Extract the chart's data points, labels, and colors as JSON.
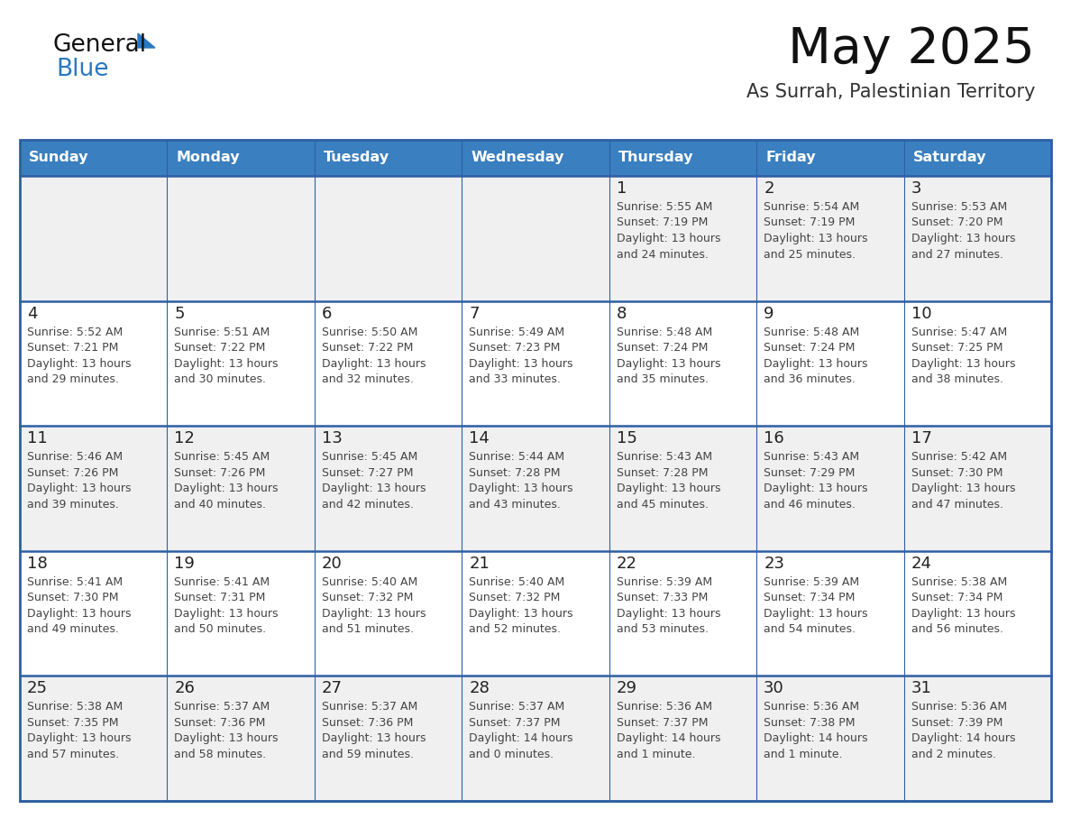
{
  "title": "May 2025",
  "subtitle": "As Surrah, Palestinian Territory",
  "days_of_week": [
    "Sunday",
    "Monday",
    "Tuesday",
    "Wednesday",
    "Thursday",
    "Friday",
    "Saturday"
  ],
  "header_bg": "#3a7fbf",
  "header_text": "#ffffff",
  "cell_bg": "#ffffff",
  "cell_bg_first": "#f0f0f0",
  "cell_border_color": "#2e5fa3",
  "row_divider_color": "#2e5fa3",
  "day_number_color": "#222222",
  "text_color": "#444444",
  "title_color": "#111111",
  "subtitle_color": "#333333",
  "logo_general_color": "#111111",
  "logo_blue_color": "#2878c0",
  "weeks": [
    {
      "days": [
        {
          "date": "",
          "sunrise": "",
          "sunset": "",
          "daylight": ""
        },
        {
          "date": "",
          "sunrise": "",
          "sunset": "",
          "daylight": ""
        },
        {
          "date": "",
          "sunrise": "",
          "sunset": "",
          "daylight": ""
        },
        {
          "date": "",
          "sunrise": "",
          "sunset": "",
          "daylight": ""
        },
        {
          "date": "1",
          "sunrise": "5:55 AM",
          "sunset": "7:19 PM",
          "daylight": "13 hours and 24 minutes."
        },
        {
          "date": "2",
          "sunrise": "5:54 AM",
          "sunset": "7:19 PM",
          "daylight": "13 hours and 25 minutes."
        },
        {
          "date": "3",
          "sunrise": "5:53 AM",
          "sunset": "7:20 PM",
          "daylight": "13 hours and 27 minutes."
        }
      ]
    },
    {
      "days": [
        {
          "date": "4",
          "sunrise": "5:52 AM",
          "sunset": "7:21 PM",
          "daylight": "13 hours and 29 minutes."
        },
        {
          "date": "5",
          "sunrise": "5:51 AM",
          "sunset": "7:22 PM",
          "daylight": "13 hours and 30 minutes."
        },
        {
          "date": "6",
          "sunrise": "5:50 AM",
          "sunset": "7:22 PM",
          "daylight": "13 hours and 32 minutes."
        },
        {
          "date": "7",
          "sunrise": "5:49 AM",
          "sunset": "7:23 PM",
          "daylight": "13 hours and 33 minutes."
        },
        {
          "date": "8",
          "sunrise": "5:48 AM",
          "sunset": "7:24 PM",
          "daylight": "13 hours and 35 minutes."
        },
        {
          "date": "9",
          "sunrise": "5:48 AM",
          "sunset": "7:24 PM",
          "daylight": "13 hours and 36 minutes."
        },
        {
          "date": "10",
          "sunrise": "5:47 AM",
          "sunset": "7:25 PM",
          "daylight": "13 hours and 38 minutes."
        }
      ]
    },
    {
      "days": [
        {
          "date": "11",
          "sunrise": "5:46 AM",
          "sunset": "7:26 PM",
          "daylight": "13 hours and 39 minutes."
        },
        {
          "date": "12",
          "sunrise": "5:45 AM",
          "sunset": "7:26 PM",
          "daylight": "13 hours and 40 minutes."
        },
        {
          "date": "13",
          "sunrise": "5:45 AM",
          "sunset": "7:27 PM",
          "daylight": "13 hours and 42 minutes."
        },
        {
          "date": "14",
          "sunrise": "5:44 AM",
          "sunset": "7:28 PM",
          "daylight": "13 hours and 43 minutes."
        },
        {
          "date": "15",
          "sunrise": "5:43 AM",
          "sunset": "7:28 PM",
          "daylight": "13 hours and 45 minutes."
        },
        {
          "date": "16",
          "sunrise": "5:43 AM",
          "sunset": "7:29 PM",
          "daylight": "13 hours and 46 minutes."
        },
        {
          "date": "17",
          "sunrise": "5:42 AM",
          "sunset": "7:30 PM",
          "daylight": "13 hours and 47 minutes."
        }
      ]
    },
    {
      "days": [
        {
          "date": "18",
          "sunrise": "5:41 AM",
          "sunset": "7:30 PM",
          "daylight": "13 hours and 49 minutes."
        },
        {
          "date": "19",
          "sunrise": "5:41 AM",
          "sunset": "7:31 PM",
          "daylight": "13 hours and 50 minutes."
        },
        {
          "date": "20",
          "sunrise": "5:40 AM",
          "sunset": "7:32 PM",
          "daylight": "13 hours and 51 minutes."
        },
        {
          "date": "21",
          "sunrise": "5:40 AM",
          "sunset": "7:32 PM",
          "daylight": "13 hours and 52 minutes."
        },
        {
          "date": "22",
          "sunrise": "5:39 AM",
          "sunset": "7:33 PM",
          "daylight": "13 hours and 53 minutes."
        },
        {
          "date": "23",
          "sunrise": "5:39 AM",
          "sunset": "7:34 PM",
          "daylight": "13 hours and 54 minutes."
        },
        {
          "date": "24",
          "sunrise": "5:38 AM",
          "sunset": "7:34 PM",
          "daylight": "13 hours and 56 minutes."
        }
      ]
    },
    {
      "days": [
        {
          "date": "25",
          "sunrise": "5:38 AM",
          "sunset": "7:35 PM",
          "daylight": "13 hours and 57 minutes."
        },
        {
          "date": "26",
          "sunrise": "5:37 AM",
          "sunset": "7:36 PM",
          "daylight": "13 hours and 58 minutes."
        },
        {
          "date": "27",
          "sunrise": "5:37 AM",
          "sunset": "7:36 PM",
          "daylight": "13 hours and 59 minutes."
        },
        {
          "date": "28",
          "sunrise": "5:37 AM",
          "sunset": "7:37 PM",
          "daylight": "14 hours and 0 minutes."
        },
        {
          "date": "29",
          "sunrise": "5:36 AM",
          "sunset": "7:37 PM",
          "daylight": "14 hours and 1 minute."
        },
        {
          "date": "30",
          "sunrise": "5:36 AM",
          "sunset": "7:38 PM",
          "daylight": "14 hours and 1 minute."
        },
        {
          "date": "31",
          "sunrise": "5:36 AM",
          "sunset": "7:39 PM",
          "daylight": "14 hours and 2 minutes."
        }
      ]
    }
  ]
}
